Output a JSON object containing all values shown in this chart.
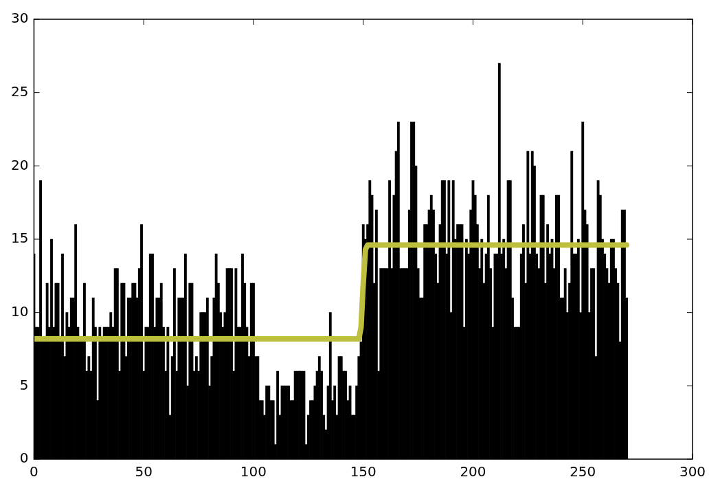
{
  "chart_data": {
    "type": "bar",
    "x": [
      0,
      1,
      2,
      3,
      4,
      5,
      6,
      7,
      8,
      9,
      10,
      11,
      12,
      13,
      14,
      15,
      16,
      17,
      18,
      19,
      20,
      21,
      22,
      23,
      24,
      25,
      26,
      27,
      28,
      29,
      30,
      31,
      32,
      33,
      34,
      35,
      36,
      37,
      38,
      39,
      40,
      41,
      42,
      43,
      44,
      45,
      46,
      47,
      48,
      49,
      50,
      51,
      52,
      53,
      54,
      55,
      56,
      57,
      58,
      59,
      60,
      61,
      62,
      63,
      64,
      65,
      66,
      67,
      68,
      69,
      70,
      71,
      72,
      73,
      74,
      75,
      76,
      77,
      78,
      79,
      80,
      81,
      82,
      83,
      84,
      85,
      86,
      87,
      88,
      89,
      90,
      91,
      92,
      93,
      94,
      95,
      96,
      97,
      98,
      99,
      100,
      101,
      102,
      103,
      104,
      105,
      106,
      107,
      108,
      109,
      110,
      111,
      112,
      113,
      114,
      115,
      116,
      117,
      118,
      119,
      120,
      121,
      122,
      123,
      124,
      125,
      126,
      127,
      128,
      129,
      130,
      131,
      132,
      133,
      134,
      135,
      136,
      137,
      138,
      139,
      140,
      141,
      142,
      143,
      144,
      145,
      146,
      147,
      148,
      149,
      150,
      151,
      152,
      153,
      154,
      155,
      156,
      157,
      158,
      159,
      160,
      161,
      162,
      163,
      164,
      165,
      166,
      167,
      168,
      169,
      170,
      171,
      172,
      173,
      174,
      175,
      176,
      177,
      178,
      179,
      180,
      181,
      182,
      183,
      184,
      185,
      186,
      187,
      188,
      189,
      190,
      191,
      192,
      193,
      194,
      195,
      196,
      197,
      198,
      199,
      200,
      201,
      202,
      203,
      204,
      205,
      206,
      207,
      208,
      209,
      210,
      211,
      212,
      213,
      214,
      215,
      216,
      217,
      218,
      219,
      220,
      221,
      222,
      223,
      224,
      225,
      226,
      227,
      228,
      229,
      230,
      231,
      232,
      233,
      234,
      235,
      236,
      237,
      238,
      239,
      240,
      241,
      242,
      243,
      244,
      245,
      246,
      247,
      248,
      249,
      250,
      251,
      252,
      253,
      254,
      255,
      256,
      257,
      258,
      259,
      260,
      261,
      262,
      263,
      264,
      265,
      266,
      267,
      268,
      269,
      270
    ],
    "series": [
      {
        "color": "#000000",
        "values": [
          14,
          9,
          9,
          19,
          8,
          8,
          12,
          9,
          15,
          9,
          12,
          12,
          8,
          14,
          7,
          10,
          9,
          11,
          11,
          16,
          9,
          8,
          8,
          12,
          6,
          7,
          6,
          11,
          9,
          4,
          9,
          8,
          9,
          9,
          9,
          10,
          9,
          13,
          13,
          6,
          12,
          12,
          7,
          11,
          11,
          12,
          12,
          11,
          13,
          16,
          6,
          9,
          9,
          14,
          14,
          9,
          11,
          11,
          12,
          9,
          6,
          9,
          3,
          7,
          13,
          6,
          11,
          11,
          11,
          14,
          5,
          12,
          12,
          6,
          7,
          6,
          10,
          10,
          10,
          11,
          5,
          7,
          11,
          14,
          12,
          10,
          9,
          10,
          13,
          13,
          13,
          6,
          13,
          9,
          9,
          14,
          12,
          9,
          7,
          12,
          12,
          7,
          7,
          4,
          4,
          3,
          5,
          5,
          4,
          4,
          1,
          6,
          3,
          5,
          5,
          5,
          5,
          4,
          4,
          6,
          6,
          6,
          6,
          6,
          1,
          3,
          4,
          4,
          5,
          6,
          7,
          6,
          3,
          2,
          5,
          10,
          4,
          5,
          3,
          7,
          7,
          6,
          6,
          4,
          5,
          3,
          3,
          5,
          7,
          8,
          16,
          15,
          16,
          19,
          18,
          12,
          17,
          6,
          13,
          13,
          13,
          13,
          19,
          13,
          18,
          21,
          23,
          13,
          13,
          13,
          13,
          17,
          23,
          23,
          20,
          13,
          11,
          11,
          16,
          16,
          17,
          18,
          17,
          14,
          12,
          16,
          19,
          19,
          14,
          19,
          10,
          19,
          15,
          16,
          16,
          16,
          9,
          15,
          14,
          17,
          19,
          18,
          16,
          13,
          15,
          12,
          14,
          18,
          13,
          9,
          14,
          14,
          27,
          14,
          15,
          13,
          19,
          19,
          11,
          9,
          9,
          9,
          14,
          16,
          12,
          21,
          14,
          21,
          20,
          14,
          13,
          18,
          18,
          12,
          16,
          14,
          15,
          13,
          18,
          18,
          11,
          11,
          13,
          10,
          12,
          21,
          14,
          14,
          15,
          10,
          23,
          17,
          16,
          10,
          13,
          13,
          7,
          19,
          18,
          15,
          14,
          13,
          12,
          15,
          15,
          13,
          12,
          8,
          17,
          17,
          11
        ]
      },
      {
        "type": "line",
        "color": "#bfbf3f",
        "x": [
          0,
          148,
          149,
          150,
          151,
          152,
          270
        ],
        "values": [
          8.2,
          8.2,
          9,
          12,
          14.3,
          14.6,
          14.6
        ]
      }
    ],
    "xlim": [
      0,
      300
    ],
    "xticks": [
      0,
      50,
      100,
      150,
      200,
      250,
      300
    ],
    "ylim": [
      0,
      30
    ],
    "yticks": [
      0,
      5,
      10,
      15,
      20,
      25,
      30
    ],
    "grid": false,
    "legend": false
  }
}
